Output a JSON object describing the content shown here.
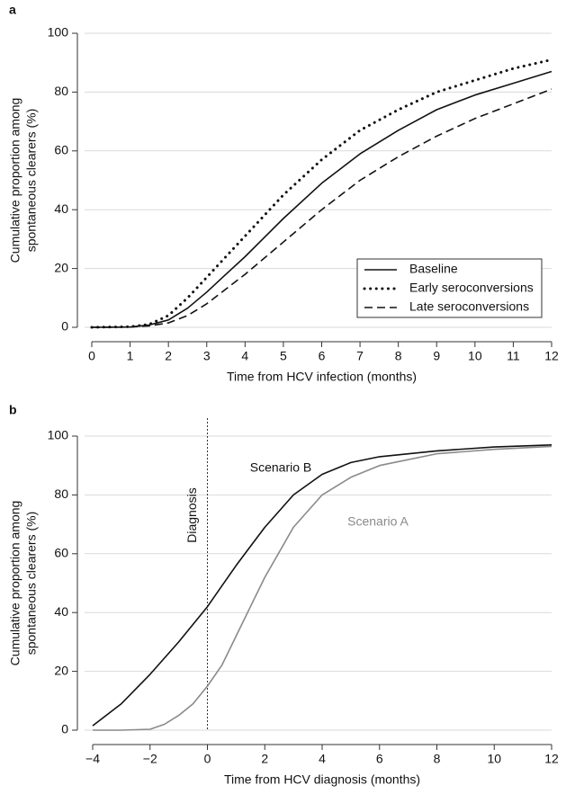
{
  "chart_data": [
    {
      "type": "line",
      "panel_label": "a",
      "xlabel": "Time from HCV infection (months)",
      "ylabel": [
        "Cumulative proportion among",
        "spontaneous clearers (%)"
      ],
      "x": [
        0,
        1,
        1.5,
        2,
        2.5,
        3,
        3.5,
        4,
        5,
        6,
        7,
        8,
        9,
        10,
        11,
        12
      ],
      "series": [
        {
          "name": "Baseline",
          "color": "#111111",
          "linestyle": "solid",
          "values": [
            0,
            0.1,
            0.8,
            2.5,
            6.5,
            12,
            18,
            24,
            37,
            49,
            59,
            67,
            74,
            79,
            83,
            87
          ]
        },
        {
          "name": "Early seroconversions",
          "color": "#111111",
          "linestyle": "dotted",
          "values": [
            0,
            0.2,
            1,
            4,
            10,
            17,
            24,
            31,
            45,
            57,
            67,
            74,
            80,
            84,
            88,
            91
          ]
        },
        {
          "name": "Late seroconversions",
          "color": "#111111",
          "linestyle": "dashed",
          "values": [
            0,
            0.1,
            0.5,
            1.5,
            4,
            8,
            13,
            18,
            29,
            40,
            50,
            58,
            65,
            71,
            76,
            81
          ]
        }
      ],
      "xlim": [
        0,
        12
      ],
      "xticks": [
        0,
        1,
        2,
        3,
        4,
        5,
        6,
        7,
        8,
        9,
        10,
        11,
        12
      ],
      "ylim": [
        0,
        100
      ],
      "yticks": [
        0,
        20,
        40,
        60,
        80,
        100
      ],
      "grid": true,
      "legend": "lower right"
    },
    {
      "type": "line",
      "panel_label": "b",
      "xlabel": "Time from HCV diagnosis (months)",
      "ylabel": [
        "Cumulative proportion among",
        "spontaneous clearers (%)"
      ],
      "x": [
        -4,
        -3,
        -2,
        -1.5,
        -1,
        -0.5,
        0,
        0.5,
        1,
        1.5,
        2,
        3,
        4,
        5,
        6,
        8,
        10,
        12
      ],
      "series": [
        {
          "name": "Scenario B",
          "color": "#111111",
          "linestyle": "solid",
          "values": [
            1.5,
            9,
            19,
            24.5,
            30,
            36,
            42,
            49,
            56,
            62.5,
            69,
            80,
            87,
            91,
            93,
            95,
            96.3,
            97
          ]
        },
        {
          "name": "Scenario A",
          "color": "#8a8a8a",
          "linestyle": "solid",
          "values": [
            0,
            0,
            0.3,
            2,
            5,
            9,
            15,
            22,
            32,
            42,
            52,
            69,
            80,
            86,
            90,
            94,
            95.5,
            96.5
          ]
        }
      ],
      "vline": {
        "value": 0,
        "label": "Diagnosis"
      },
      "xlim": [
        -4,
        12
      ],
      "xticks": [
        {
          "value": -4,
          "label": "−4"
        },
        {
          "value": -2,
          "label": "−2"
        },
        0,
        2,
        4,
        6,
        8,
        10,
        12
      ],
      "ylim": [
        0,
        100
      ],
      "yticks": [
        0,
        20,
        40,
        60,
        80,
        100
      ],
      "grid": true
    }
  ]
}
